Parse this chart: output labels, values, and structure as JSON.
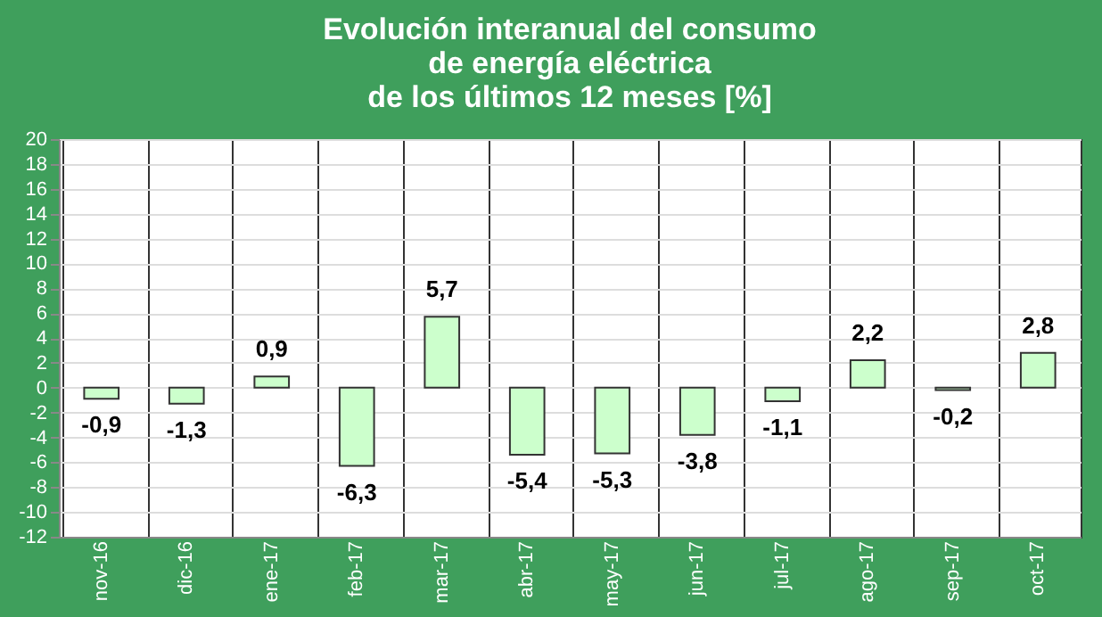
{
  "chart_data": {
    "type": "bar",
    "title": "Evolución interanual del consumo\nde energía eléctrica\nde los últimos 12 meses [%]",
    "categories": [
      "nov-16",
      "dic-16",
      "ene-17",
      "feb-17",
      "mar-17",
      "abr-17",
      "may-17",
      "jun-17",
      "jul-17",
      "ago-17",
      "sep-17",
      "oct-17"
    ],
    "values": [
      -0.9,
      -1.3,
      0.9,
      -6.3,
      5.7,
      -5.4,
      -5.3,
      -3.8,
      -1.1,
      2.2,
      -0.2,
      2.8
    ],
    "value_labels": [
      "-0,9",
      "-1,3",
      "0,9",
      "-6,3",
      "5,7",
      "-5,4",
      "-5,3",
      "-3,8",
      "-1,1",
      "2,2",
      "-0,2",
      "2,8"
    ],
    "color": "#ccffcc",
    "ylim": [
      -12,
      20
    ],
    "yticks": [
      -12,
      -10,
      -8,
      -6,
      -4,
      -2,
      0,
      2,
      4,
      6,
      8,
      10,
      12,
      14,
      16,
      18,
      20
    ],
    "grid": true
  }
}
